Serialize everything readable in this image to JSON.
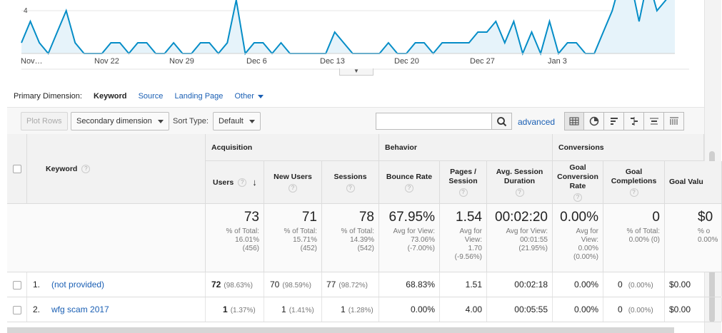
{
  "chart_data": {
    "type": "area",
    "x_tick_labels": [
      "Nov…",
      "Nov 22",
      "Nov 29",
      "Dec 6",
      "Dec 13",
      "Dec 20",
      "Dec 27",
      "Jan 3"
    ],
    "y_tick_labels": [
      "4"
    ],
    "y_ticks": [
      4
    ],
    "ylim": [
      0,
      6
    ],
    "values": [
      1,
      3,
      1,
      0,
      2,
      4,
      1,
      0,
      0,
      0,
      1,
      1,
      0,
      1,
      1,
      0,
      0,
      1,
      0,
      0,
      1,
      1,
      0,
      1,
      5,
      0,
      1,
      1,
      0,
      1,
      0,
      0,
      0,
      0,
      0,
      2,
      1,
      0,
      0,
      0,
      0,
      1,
      0,
      0,
      1,
      1,
      0,
      1,
      1,
      1,
      1,
      2,
      2,
      3,
      1,
      3,
      0,
      2,
      0,
      3,
      0,
      1,
      1,
      0,
      0,
      2,
      4,
      7,
      7,
      3,
      7,
      4,
      5,
      7
    ],
    "line_color": "#058dc7",
    "fill_color": "#e6f3fa",
    "grid": true
  },
  "dimension_bar": {
    "label": "Primary Dimension:",
    "active": "Keyword",
    "options": [
      "Source",
      "Landing Page",
      "Other"
    ]
  },
  "toolbar": {
    "plot_rows": "Plot Rows",
    "secondary_dimension": "Secondary dimension",
    "sort_type_label": "Sort Type:",
    "sort_type_value": "Default",
    "search_value": "",
    "advanced": "advanced"
  },
  "table": {
    "keyword_header": "Keyword",
    "groups": [
      "Acquisition",
      "Behavior",
      "Conversions"
    ],
    "columns": [
      {
        "label": "Users"
      },
      {
        "label": "New Users"
      },
      {
        "label": "Sessions"
      },
      {
        "label": "Bounce Rate"
      },
      {
        "label": "Pages / Session"
      },
      {
        "label": "Avg. Session Duration"
      },
      {
        "label": "Goal Conversion Rate"
      },
      {
        "label": "Goal Completions"
      },
      {
        "label": "Goal Valu"
      }
    ],
    "totals": [
      {
        "value": "73",
        "sub": "% of Total:\n16.01%\n(456)"
      },
      {
        "value": "71",
        "sub": "% of Total:\n15.71%\n(452)"
      },
      {
        "value": "78",
        "sub": "% of Total:\n14.39%\n(542)"
      },
      {
        "value": "67.95%",
        "sub": "Avg for View:\n73.06%\n(-7.00%)"
      },
      {
        "value": "1.54",
        "sub": "Avg for\nView:\n1.70\n(-9.56%)"
      },
      {
        "value": "00:02:20",
        "sub": "Avg for View:\n00:01:55\n(21.95%)"
      },
      {
        "value": "0.00%",
        "sub": "Avg for\nView:\n0.00%\n(0.00%)"
      },
      {
        "value": "0",
        "sub": "% of Total:\n0.00% (0)"
      },
      {
        "value": "$0",
        "sub": "% o\n0.00%"
      }
    ],
    "rows": [
      {
        "index": "1.",
        "keyword": "(not provided)",
        "users": "72",
        "users_pct": "(98.63%)",
        "new_users": "70",
        "new_users_pct": "(98.59%)",
        "sessions": "77",
        "sessions_pct": "(98.72%)",
        "bounce_rate": "68.83%",
        "pages_session": "1.51",
        "duration": "00:02:18",
        "conv_rate": "0.00%",
        "completions": "0",
        "completions_pct": "(0.00%)",
        "goal_value": "$0.00"
      },
      {
        "index": "2.",
        "keyword": "wfg scam 2017",
        "users": "1",
        "users_pct": "(1.37%)",
        "new_users": "1",
        "new_users_pct": "(1.41%)",
        "sessions": "1",
        "sessions_pct": "(1.28%)",
        "bounce_rate": "0.00%",
        "pages_session": "4.00",
        "duration": "00:05:55",
        "conv_rate": "0.00%",
        "completions": "0",
        "completions_pct": "(0.00%)",
        "goal_value": "$0.00"
      }
    ]
  }
}
